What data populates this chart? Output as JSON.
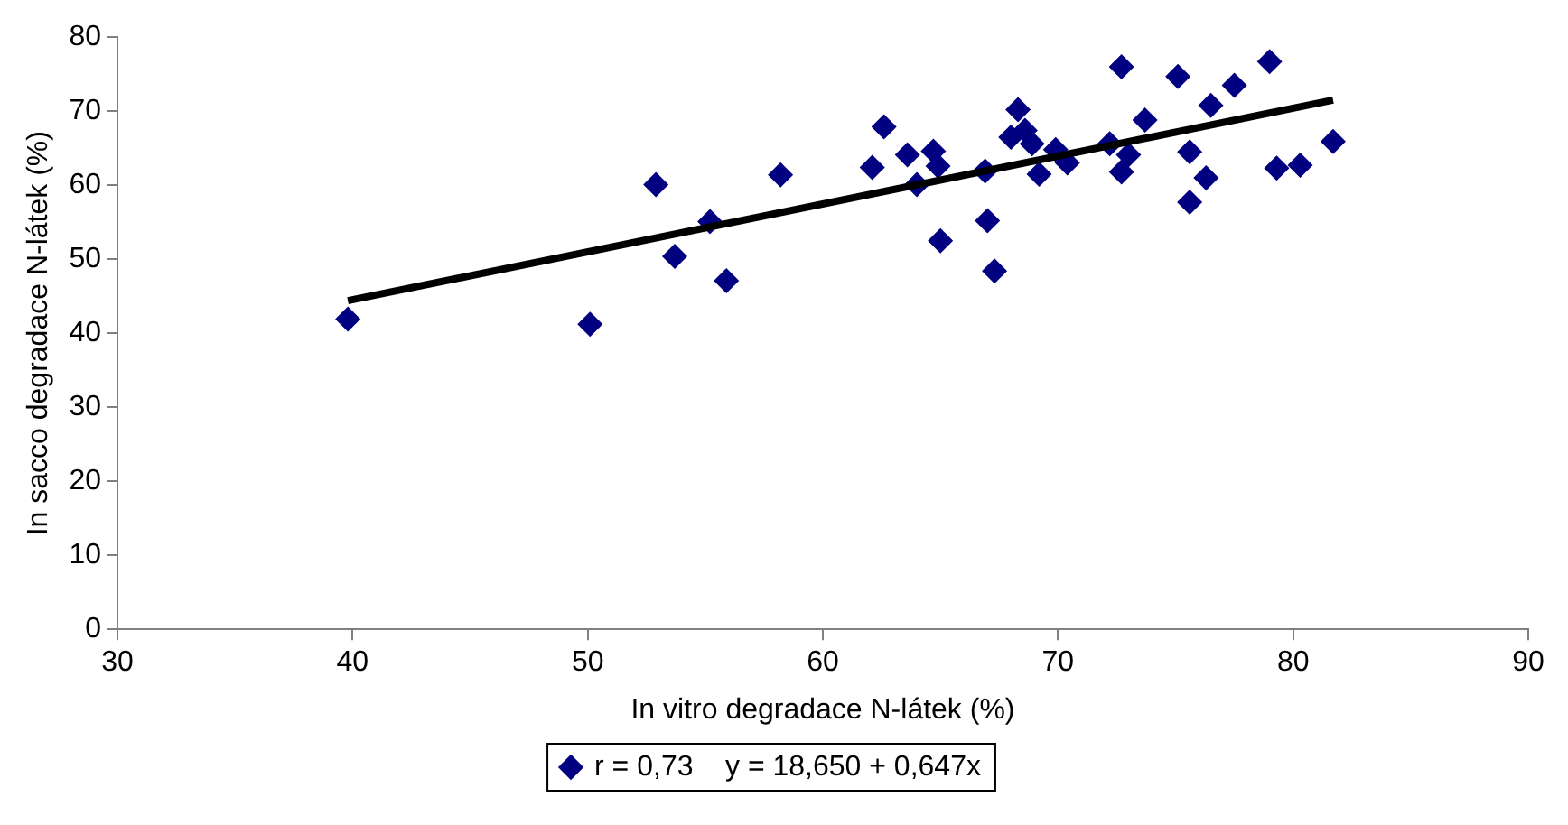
{
  "chart_data": {
    "type": "scatter",
    "xlabel": "In vitro degradace N-látek (%)",
    "ylabel": "In sacco degradace N-látek (%)",
    "xlim": [
      30,
      90
    ],
    "xticks": [
      30,
      40,
      50,
      60,
      70,
      80,
      90
    ],
    "ylim": [
      0,
      80
    ],
    "yticks": [
      0,
      10,
      20,
      30,
      40,
      50,
      60,
      70,
      80
    ],
    "grid": false,
    "legend": "bottom",
    "marker": "diamond",
    "series": [
      {
        "name": "r = 0,73    y = 18,650 + 0,647x",
        "color": "#000080",
        "x": [
          39.8,
          50.1,
          52.9,
          53.7,
          55.2,
          55.9,
          58.2,
          62.1,
          62.6,
          63.6,
          64.0,
          64.7,
          64.9,
          65.0,
          67.0,
          67.3,
          66.9,
          68.0,
          68.3,
          68.6,
          68.9,
          69.2,
          69.9,
          70.4,
          72.2,
          72.7,
          72.7,
          73.0,
          73.7,
          75.1,
          75.6,
          75.6,
          76.3,
          76.5,
          77.5,
          79.0,
          79.3,
          80.3,
          81.7
        ],
        "values": [
          41.9,
          41.2,
          60.1,
          50.4,
          55.1,
          47.1,
          61.4,
          62.4,
          67.9,
          64.1,
          60.1,
          64.6,
          62.6,
          52.5,
          55.2,
          48.4,
          61.9,
          66.5,
          70.2,
          67.4,
          65.6,
          61.5,
          64.8,
          63.0,
          65.6,
          76.0,
          61.8,
          64.1,
          68.8,
          74.7,
          64.5,
          57.7,
          61.0,
          70.8,
          73.5,
          76.7,
          62.3,
          62.7,
          65.9
        ]
      },
      {
        "type": "line",
        "color": "#000000",
        "line_style": "solid",
        "marker": "none",
        "x": [
          39.8,
          81.7
        ],
        "values": [
          44.4,
          71.5
        ]
      }
    ]
  }
}
